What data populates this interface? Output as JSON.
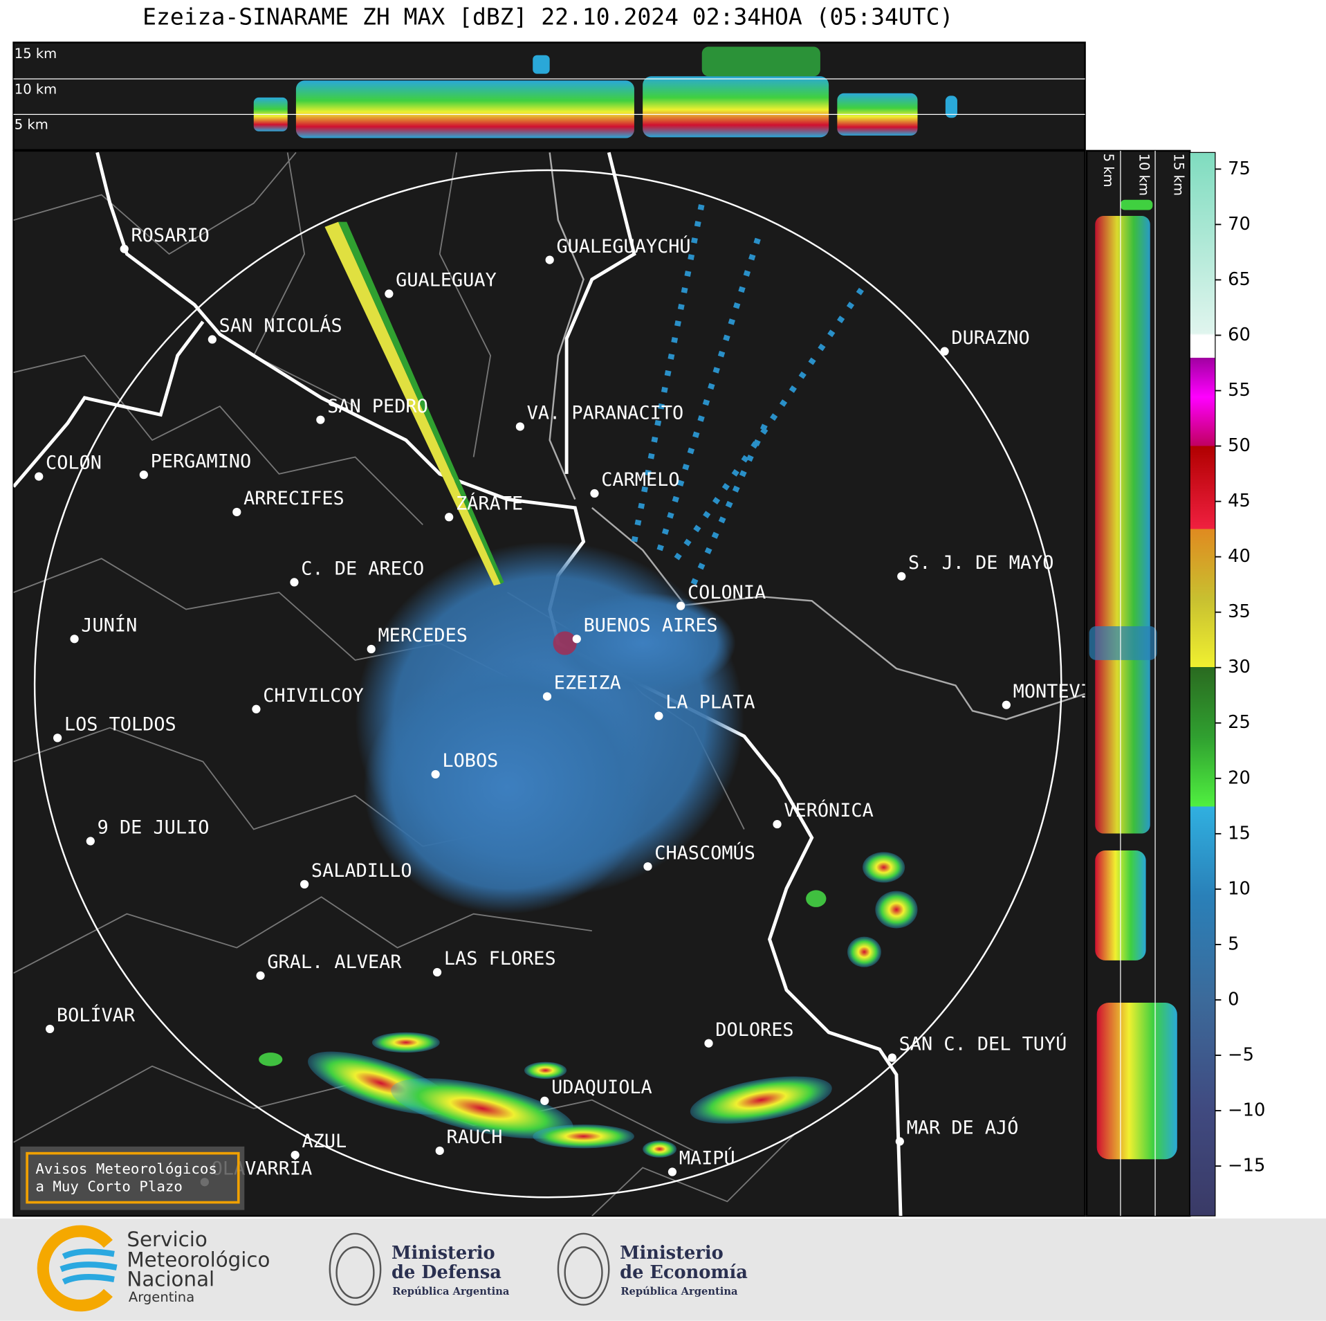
{
  "title": "Ezeiza-SINARAME ZH MAX [dBZ] 22.10.2024 02:34HOA (05:34UTC)",
  "height_labels": [
    "15 km",
    "10 km",
    "5 km"
  ],
  "cities": [
    "ROSARIO",
    "GUALEGUAY",
    "GUALEGUAYCHÚ",
    "SAN NICOLÁS",
    "DURAZNO",
    "SAN PEDRO",
    "VA. PARANACITO",
    "COLON",
    "PERGAMINO",
    "CARMELO",
    "ARRECIFES",
    "ZÁRATE",
    "S. J. DE MAYO",
    "C. DE ARECO",
    "COLONIA",
    "BUENOS AIRES",
    "JUNÍN",
    "MERCEDES",
    "EZEIZA",
    "MONTEVIDEO",
    "LA PLATA",
    "CHIVILCOY",
    "LOS TOLDOS",
    "LOBOS",
    "VERÓNICA",
    "9 DE JULIO",
    "CHASCOMÚS",
    "SALADILLO",
    "GRAL. ALVEAR",
    "LAS FLORES",
    "BOLÍVAR",
    "DOLORES",
    "SAN C. DEL TUYÚ",
    "UDAQUIOLA",
    "MAR DE AJÓ",
    "RAUCH",
    "AZUL",
    "OLAVARRÍA",
    "MAIPÚ"
  ],
  "colorbar": {
    "ylim": [
      -19.5,
      76.5
    ],
    "yticks": [
      {
        "value": -15,
        "label": "−15"
      },
      {
        "value": -10,
        "label": "−10"
      },
      {
        "value": -5,
        "label": "−5"
      },
      0,
      5,
      10,
      15,
      20,
      25,
      30,
      35,
      40,
      45,
      50,
      55,
      60,
      65,
      70,
      75
    ]
  },
  "warning_box": [
    "Avisos Meteorológicos",
    "a Muy Corto Plazo"
  ],
  "logos": {
    "smn": [
      "Servicio",
      "Meteorológico",
      "Nacional",
      "Argentina"
    ],
    "defensa": [
      "Ministerio",
      "de Defensa",
      "República Argentina"
    ],
    "economia": [
      "Ministerio",
      "de Economía",
      "República Argentina"
    ]
  }
}
